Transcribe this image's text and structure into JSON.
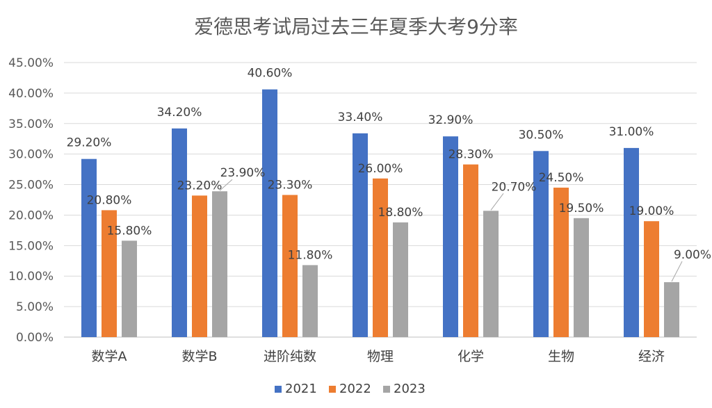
{
  "chart_data": {
    "type": "bar",
    "title": "爱德思考试局过去三年夏季大考9分率",
    "categories": [
      "数学A",
      "数学B",
      "进阶纯数",
      "物理",
      "化学",
      "生物",
      "经济"
    ],
    "series": [
      {
        "name": "2021",
        "color": "#4472c4",
        "values": [
          29.2,
          34.2,
          40.6,
          33.4,
          32.9,
          30.5,
          31.0
        ],
        "labels": [
          "29.20%",
          "34.20%",
          "40.60%",
          "33.40%",
          "32.90%",
          "30.50%",
          "31.00%"
        ]
      },
      {
        "name": "2022",
        "color": "#ed7d31",
        "values": [
          20.8,
          23.2,
          23.3,
          26.0,
          28.3,
          24.5,
          19.0
        ],
        "labels": [
          "20.80%",
          "23.20%",
          "23.30%",
          "26.00%",
          "28.30%",
          "24.50%",
          "19.00%"
        ]
      },
      {
        "name": "2023",
        "color": "#a5a5a5",
        "values": [
          15.8,
          23.9,
          11.8,
          18.8,
          20.7,
          19.5,
          9.0
        ],
        "labels": [
          "15.80%",
          "23.90%",
          "11.80%",
          "18.80%",
          "20.70%",
          "19.50%",
          "9.00%"
        ]
      }
    ],
    "ylim": [
      0,
      45
    ],
    "yticks": [
      "0.00%",
      "5.00%",
      "10.00%",
      "15.00%",
      "20.00%",
      "25.00%",
      "30.00%",
      "35.00%",
      "40.00%",
      "45.00%"
    ],
    "xlabel": "",
    "ylabel": "",
    "grid": true,
    "legend_position": "bottom"
  }
}
